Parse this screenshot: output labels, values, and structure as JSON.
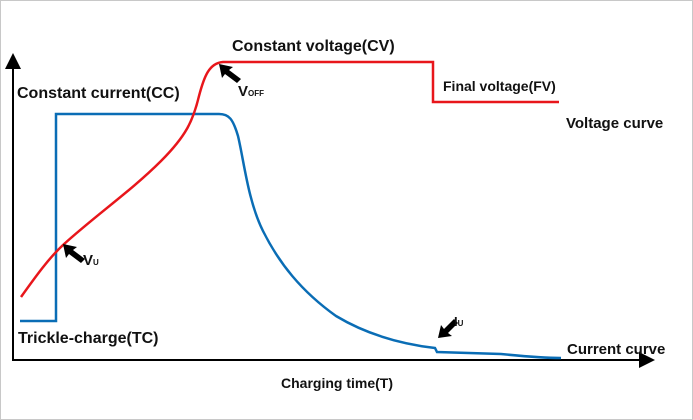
{
  "labels": {
    "constant_voltage": "Constant voltage(CV)",
    "constant_current": "Constant current(CC)",
    "final_voltage": "Final voltage(FV)",
    "trickle_charge": "Trickle-charge(TC)",
    "x_axis": "Charging time(T)",
    "v_off_main": "V",
    "v_off_sub": "OFF",
    "v_u_main": "V",
    "v_u_sub": "U",
    "i_u_main": "I",
    "i_u_sub": "U"
  },
  "legend": {
    "voltage": "Voltage curve",
    "current": "Current curve"
  },
  "colors": {
    "voltage": "#e8161b",
    "current": "#0a6db5",
    "axis": "#000000"
  }
}
